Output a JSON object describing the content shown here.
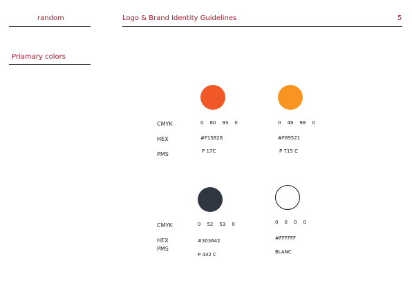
{
  "header": {
    "brand": "random",
    "title": "Logo & Brand Identity Guidelines",
    "page_number": "5"
  },
  "section": {
    "title": "Priamary colors"
  },
  "labels": {
    "cmyk": "CMYK",
    "hex": "HEX",
    "pms": "PMS"
  },
  "colors": [
    {
      "swatch": "#F15828",
      "cmyk": [
        "0",
        "80",
        "93",
        "0"
      ],
      "hex": "#F15828",
      "pms": "P 17C"
    },
    {
      "swatch": "#F89521",
      "cmyk": [
        "0",
        "49",
        "98",
        "0"
      ],
      "hex": "#F89521",
      "pms": "P 715 C"
    },
    {
      "swatch": "#303642",
      "cmyk": [
        "0",
        "52",
        "53",
        "0"
      ],
      "hex": "#303642",
      "pms": "P 432 C"
    },
    {
      "swatch": "#FFFFFF",
      "cmyk": [
        "0",
        "0",
        "0",
        "0"
      ],
      "hex": "#FFFFFF",
      "pms": "BLANC"
    }
  ]
}
